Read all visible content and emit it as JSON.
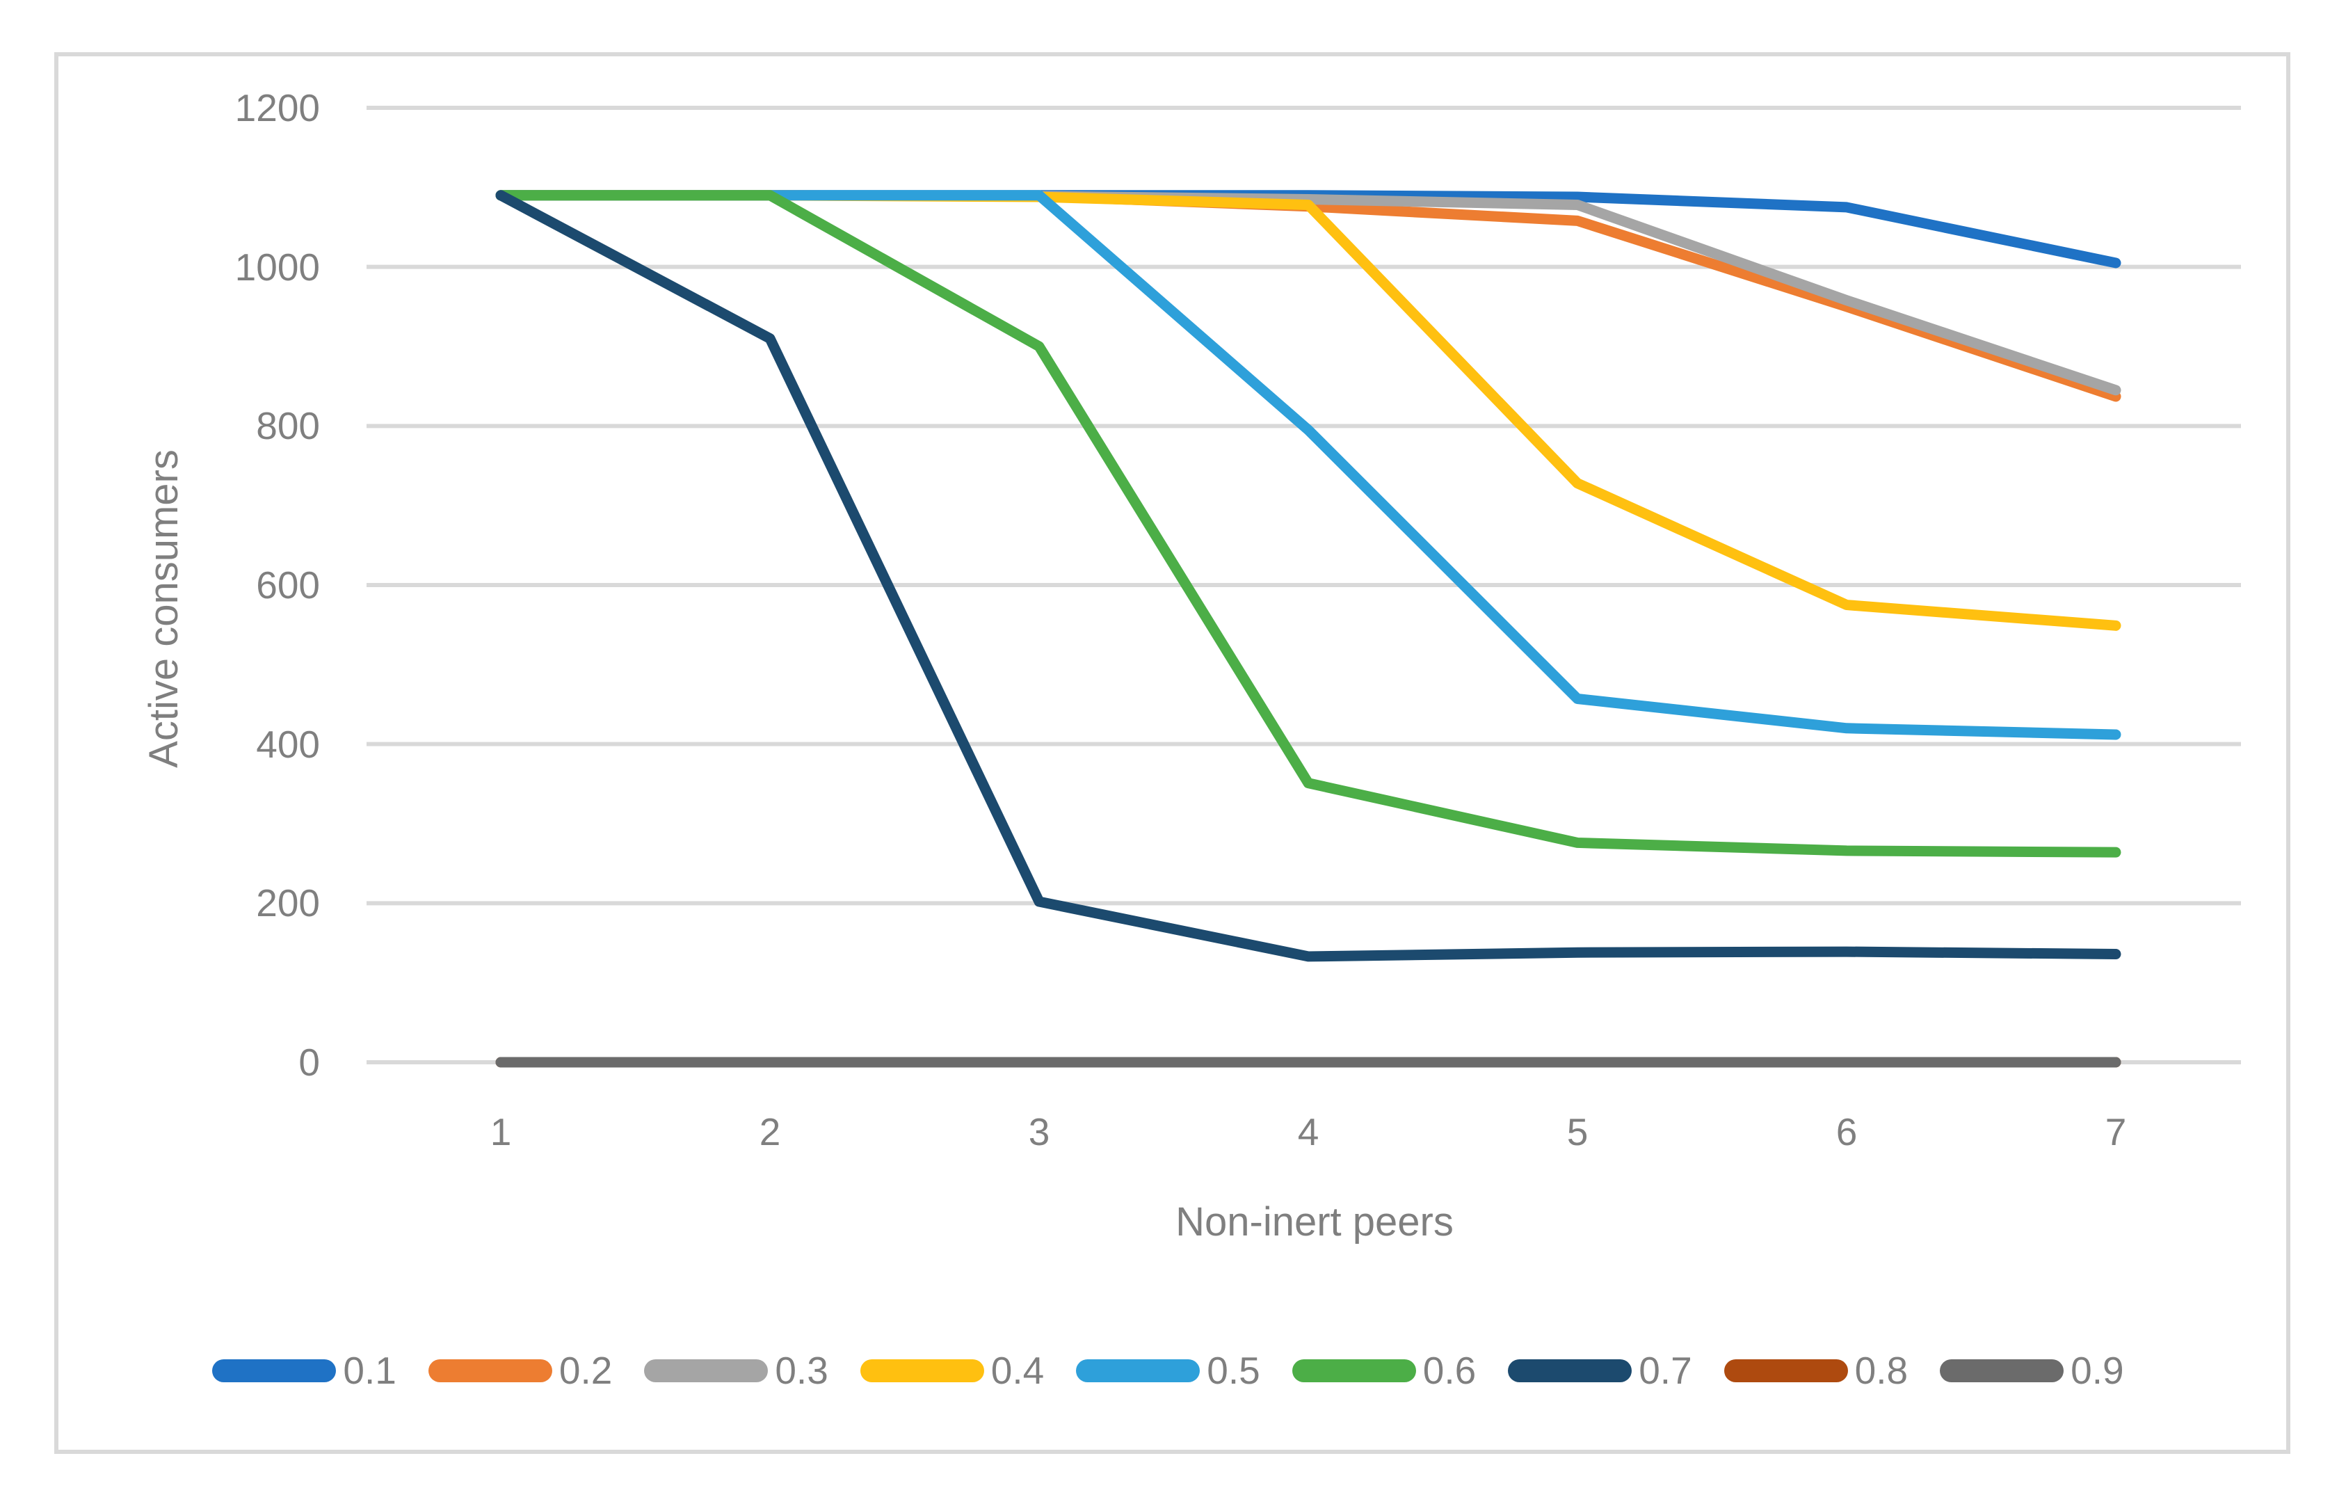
{
  "chart_data": {
    "type": "line",
    "title": "",
    "xlabel": "Non-inert peers",
    "ylabel": "Active consumers",
    "x": [
      1,
      2,
      3,
      4,
      5,
      6,
      7
    ],
    "x_tick_labels": [
      "1",
      "2",
      "3",
      "4",
      "5",
      "6",
      "7"
    ],
    "y_tick_values": [
      0,
      200,
      400,
      600,
      800,
      1000,
      1200
    ],
    "y_tick_labels": [
      "0",
      "200",
      "400",
      "600",
      "800",
      "1000",
      "1200"
    ],
    "ylim": [
      0,
      1200
    ],
    "grid": true,
    "legend_position": "bottom",
    "series": [
      {
        "name": "0.1",
        "color": "#1F72C5",
        "values": [
          1090,
          1090,
          1090,
          1090,
          1088,
          1075,
          1005
        ]
      },
      {
        "name": "0.2",
        "color": "#ED7D31",
        "values": [
          1090,
          1090,
          1089,
          1076,
          1058,
          950,
          837
        ]
      },
      {
        "name": "0.3",
        "color": "#A5A5A5",
        "values": [
          1090,
          1090,
          1089,
          1085,
          1078,
          958,
          845
        ]
      },
      {
        "name": "0.4",
        "color": "#FFC010",
        "values": [
          1090,
          1090,
          1088,
          1078,
          728,
          575,
          549
        ]
      },
      {
        "name": "0.5",
        "color": "#2EA0DA",
        "values": [
          1090,
          1090,
          1090,
          795,
          457,
          420,
          412
        ]
      },
      {
        "name": "0.6",
        "color": "#4CAE47",
        "values": [
          1090,
          1090,
          900,
          351,
          276,
          266,
          264
        ]
      },
      {
        "name": "0.7",
        "color": "#1C4A6E",
        "values": [
          1090,
          910,
          202,
          133,
          138,
          139,
          136
        ]
      },
      {
        "name": "0.8",
        "color": "#AE4A0F",
        "values": [
          0,
          0,
          0,
          0,
          0,
          0,
          0
        ]
      },
      {
        "name": "0.9",
        "color": "#6B6B6B",
        "values": [
          0,
          0,
          0,
          0,
          0,
          0,
          0
        ]
      }
    ],
    "colors": {
      "gridline": "#D9D9D9",
      "chart_border": "#D9D9D9",
      "axis_text": "#7F7F7F",
      "background": "#FFFFFF"
    }
  }
}
